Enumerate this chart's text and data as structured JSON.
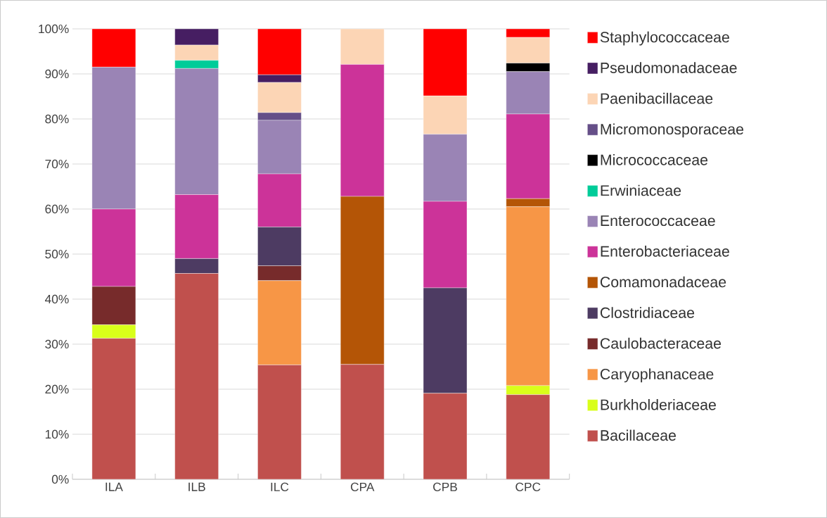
{
  "chart_data": {
    "type": "bar",
    "stacked": true,
    "categories": [
      "ILA",
      "ILB",
      "ILC",
      "CPA",
      "CPB",
      "CPC"
    ],
    "ylim": [
      0,
      100
    ],
    "yticks": [
      {
        "value": 0,
        "label": "0%"
      },
      {
        "value": 10,
        "label": "10%"
      },
      {
        "value": 20,
        "label": "20%"
      },
      {
        "value": 30,
        "label": "30%"
      },
      {
        "value": 40,
        "label": "40%"
      },
      {
        "value": 50,
        "label": "50%"
      },
      {
        "value": 60,
        "label": "60%"
      },
      {
        "value": 70,
        "label": "70%"
      },
      {
        "value": 80,
        "label": "80%"
      },
      {
        "value": 90,
        "label": "90%"
      },
      {
        "value": 100,
        "label": "100%"
      }
    ],
    "grid": "y",
    "legend": "right",
    "series": [
      {
        "name": "Bacillaceae",
        "color": "#c0504d",
        "values": [
          31.3,
          45.7,
          25.4,
          25.5,
          19.1,
          18.8
        ]
      },
      {
        "name": "Burkholderiaceae",
        "color": "#d9ff1a",
        "values": [
          3.0,
          0,
          0,
          0,
          0,
          2.0
        ]
      },
      {
        "name": "Caryophanaceae",
        "color": "#f79646",
        "values": [
          0,
          0,
          18.7,
          0,
          0,
          39.7
        ]
      },
      {
        "name": "Caulobacteraceae",
        "color": "#772b2b",
        "values": [
          8.5,
          0,
          3.3,
          0,
          0,
          0
        ]
      },
      {
        "name": "Clostridiaceae",
        "color": "#4d3b62",
        "values": [
          0,
          3.3,
          8.6,
          0,
          23.4,
          0
        ]
      },
      {
        "name": "Comamonadaceae",
        "color": "#b45506",
        "values": [
          0,
          0,
          0,
          37.3,
          0,
          1.8
        ]
      },
      {
        "name": "Enterobacteriaceae",
        "color": "#cc3399",
        "values": [
          17.2,
          14.2,
          11.8,
          29.3,
          19.2,
          18.8
        ]
      },
      {
        "name": "Enterococcaceae",
        "color": "#9a84b5",
        "values": [
          31.5,
          28.0,
          11.9,
          0,
          14.9,
          9.4
        ]
      },
      {
        "name": "Erwiniaceae",
        "color": "#00cc99",
        "values": [
          0,
          1.8,
          0,
          0,
          0,
          0
        ]
      },
      {
        "name": "Micrococcaceae",
        "color": "#000000",
        "values": [
          0,
          0,
          0,
          0,
          0,
          1.9
        ]
      },
      {
        "name": "Micromonosporaceae",
        "color": "#654f88",
        "values": [
          0,
          0,
          1.7,
          0,
          0,
          0
        ]
      },
      {
        "name": "Paenibacillaceae",
        "color": "#fcd5b5",
        "values": [
          0,
          3.4,
          6.7,
          7.9,
          8.5,
          5.7
        ]
      },
      {
        "name": "Pseudomonadaceae",
        "color": "#461e62",
        "values": [
          0,
          3.6,
          1.7,
          0,
          0,
          0
        ]
      },
      {
        "name": "Staphylococcaceae",
        "color": "#ff0000",
        "values": [
          8.5,
          0,
          10.2,
          0,
          14.9,
          1.9
        ]
      }
    ]
  }
}
